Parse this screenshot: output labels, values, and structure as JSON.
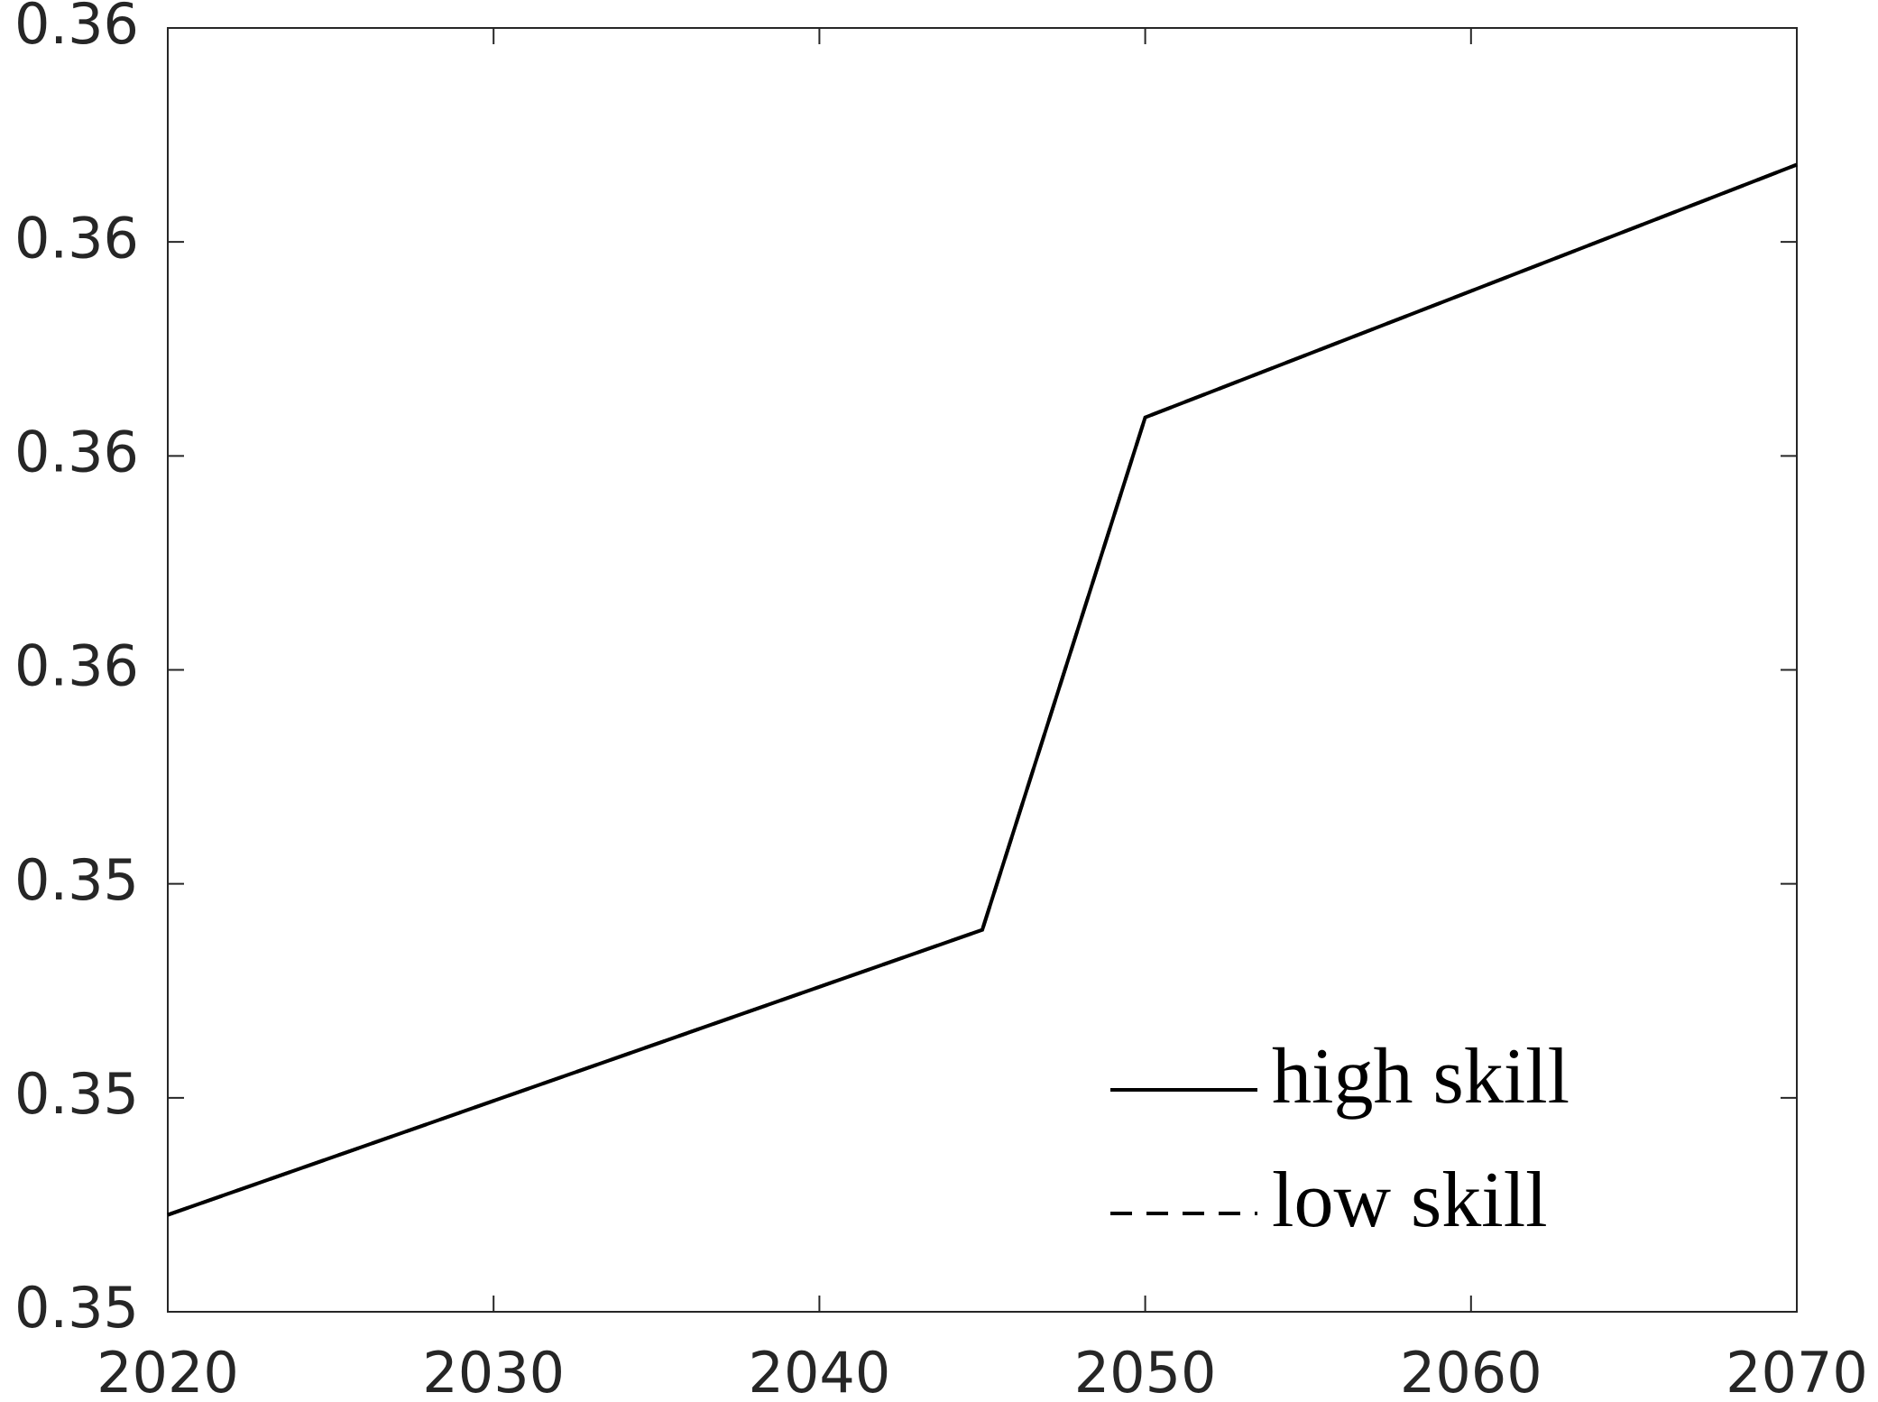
{
  "chart_data": {
    "type": "line",
    "x": [
      2020,
      2045,
      2050,
      2070
    ],
    "series": [
      {
        "name": "high skill",
        "color": "#000000",
        "dash": "solid",
        "values": [
          0.352453,
          0.353785,
          0.35618,
          0.357361
        ]
      },
      {
        "name": "low skill",
        "color": "#000000",
        "dash": "dashed",
        "values": [
          0.352453,
          0.353785,
          0.35618,
          0.357361
        ]
      }
    ],
    "xlim": [
      2020,
      2070
    ],
    "xticks": [
      2020,
      2030,
      2040,
      2050,
      2060,
      2070
    ],
    "ylim": [
      0.352,
      0.358
    ],
    "yticks": [
      {
        "value": 0.352,
        "label": "0.35"
      },
      {
        "value": 0.353,
        "label": "0.35"
      },
      {
        "value": 0.354,
        "label": "0.35"
      },
      {
        "value": 0.355,
        "label": "0.36"
      },
      {
        "value": 0.356,
        "label": "0.36"
      },
      {
        "value": 0.357,
        "label": "0.36"
      },
      {
        "value": 0.358,
        "label": "0.36"
      }
    ],
    "legend": "lower right",
    "grid": false
  }
}
